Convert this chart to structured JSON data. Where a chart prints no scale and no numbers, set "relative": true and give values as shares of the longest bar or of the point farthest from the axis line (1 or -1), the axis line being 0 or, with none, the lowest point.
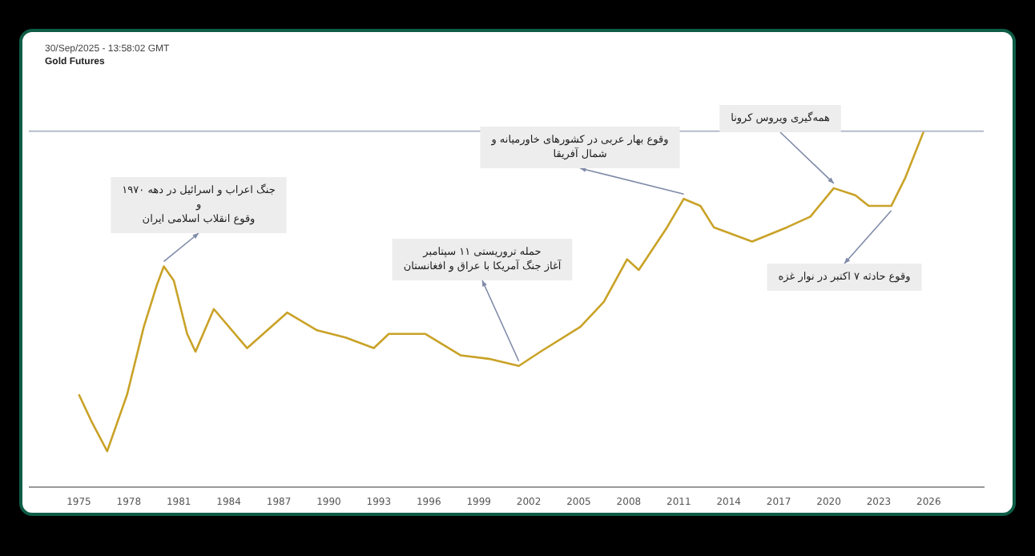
{
  "chart_data": {
    "type": "line",
    "title": "Gold Futures",
    "subtitle": "30/Sep/2025 - 13:58:02 GMT",
    "relative": true,
    "marker": "none",
    "grid": false,
    "legend": false,
    "tick_labels": "x",
    "xlim": [
      1972,
      2029.3
    ],
    "xticks": [
      1975,
      1978,
      1981,
      1984,
      1987,
      1990,
      1993,
      1996,
      1999,
      2002,
      2005,
      2008,
      2011,
      2014,
      2017,
      2020,
      2023,
      2026
    ],
    "series": [
      {
        "color": "#c9a227",
        "x": [
          1975.0,
          1975.8,
          1976.7,
          1977.9,
          1978.9,
          1979.7,
          1980.1,
          1980.7,
          1981.5,
          1982.0,
          1983.1,
          1985.1,
          1987.5,
          1989.3,
          1991.0,
          1992.7,
          1993.6,
          1995.8,
          1997.9,
          1999.6,
          2001.4,
          2002.7,
          2005.1,
          2006.5,
          2007.9,
          2008.6,
          2010.3,
          2011.3,
          2012.3,
          2013.1,
          2015.4,
          2017.5,
          2018.9,
          2020.3,
          2021.6,
          2022.4,
          2023.75,
          2024.6,
          2025.7
        ],
        "values": [
          0.26,
          0.18,
          0.1,
          0.26,
          0.45,
          0.57,
          0.62,
          0.58,
          0.43,
          0.38,
          0.5,
          0.39,
          0.49,
          0.44,
          0.42,
          0.39,
          0.43,
          0.43,
          0.37,
          0.36,
          0.34,
          0.38,
          0.45,
          0.52,
          0.64,
          0.61,
          0.73,
          0.81,
          0.79,
          0.73,
          0.69,
          0.73,
          0.76,
          0.84,
          0.82,
          0.79,
          0.79,
          0.87,
          1
        ]
      }
    ],
    "ref_lines": [
      {
        "axis": "y",
        "value": 1,
        "color": "#b4bccb"
      }
    ],
    "annotations": [
      {
        "text": "جنگ اعراب و اسرائیل در دهه ۱۹۷۰\nو\nوقوع انقلاب اسلامی ایران",
        "x": 1980.1,
        "y": 0.62
      },
      {
        "text": "حمله تروریستی ۱۱ سپتامبر\nآغاز جنگ آمریکا با عراق و افغانستان",
        "x": 2001.4,
        "y": 0.34
      },
      {
        "text": "وقوع بهار عربی در کشورهای خاورمیانه و\nشمال آفریقا",
        "x": 2011.3,
        "y": 0.81
      },
      {
        "text": "همه‌گیری ویروس کرونا",
        "x": 2020.3,
        "y": 0.84
      },
      {
        "text": "وقوع حادثه ۷ اکتبر در نوار غزه",
        "x": 2023.75,
        "y": 0.79
      }
    ]
  }
}
